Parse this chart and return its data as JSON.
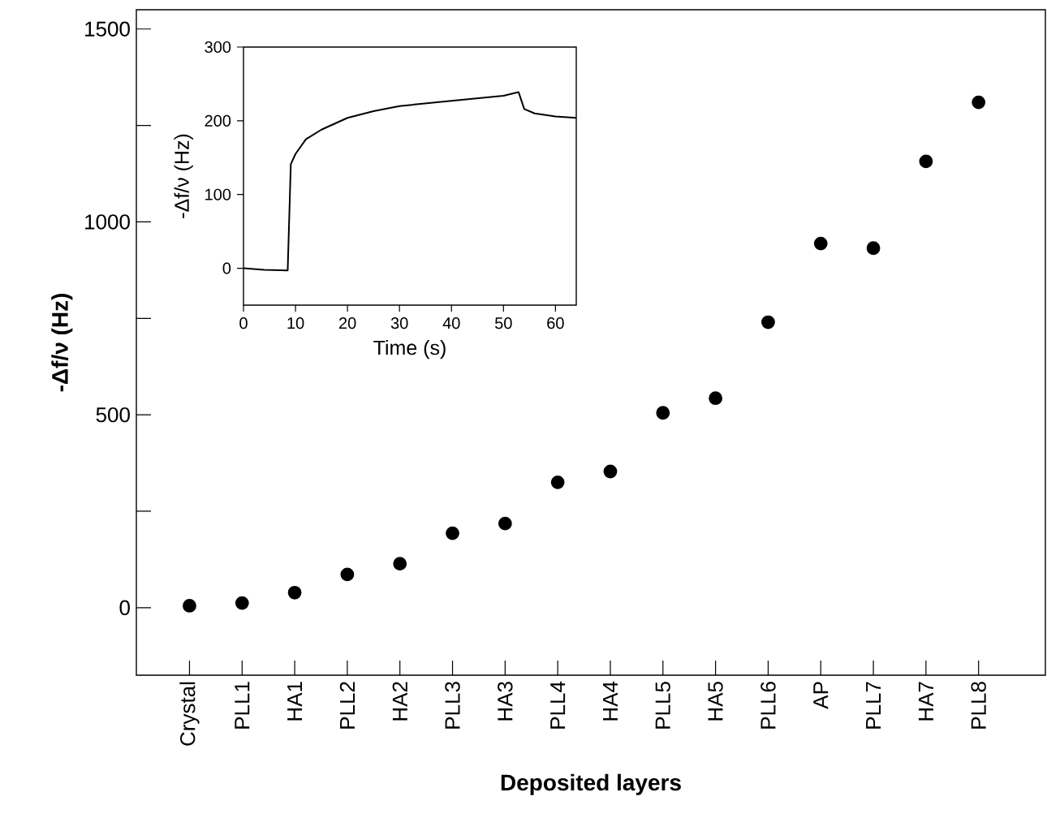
{
  "chart_data": [
    {
      "type": "scatter",
      "xlabel": "Deposited layers",
      "ylabel": "-Δf/ν (Hz)",
      "categories": [
        "Crystal",
        "PLL1",
        "HA1",
        "PLL2",
        "HA2",
        "PLL3",
        "HA3",
        "PLL4",
        "HA4",
        "PLL5",
        "HA5",
        "PLL6",
        "AP",
        "PLL7",
        "HA7",
        "PLL8"
      ],
      "values": [
        5,
        12,
        39,
        86,
        114,
        193,
        218,
        325,
        353,
        505,
        543,
        740,
        944,
        932,
        1157,
        1310
      ],
      "color": "#000000",
      "marker": "circle",
      "ylim": [
        -175,
        1550
      ],
      "yticks": [
        0,
        {
          "value": 250,
          "label": null
        },
        500,
        {
          "value": 750,
          "label": null
        },
        1000,
        {
          "value": 1250,
          "label": null
        },
        1500
      ],
      "grid": false
    },
    {
      "type": "line",
      "xlabel": "Time (s)",
      "ylabel": "-Δf/ν (Hz)",
      "x": [
        0,
        4,
        8.5,
        9.1,
        10,
        12,
        15,
        20,
        25,
        30,
        40,
        50,
        52.9,
        54,
        56,
        60,
        64
      ],
      "values": [
        0,
        -2,
        -3,
        141,
        155,
        175,
        188,
        204,
        213,
        220,
        227,
        234,
        239,
        216,
        210,
        206,
        204
      ],
      "color": "#000000",
      "marker": "none",
      "line_style": "solid",
      "xlim": [
        0,
        64
      ],
      "ylim": [
        -50,
        300
      ],
      "xticks": [
        0,
        10,
        20,
        30,
        40,
        50,
        60
      ],
      "yticks": [
        0,
        100,
        200,
        300
      ],
      "grid": false
    }
  ]
}
